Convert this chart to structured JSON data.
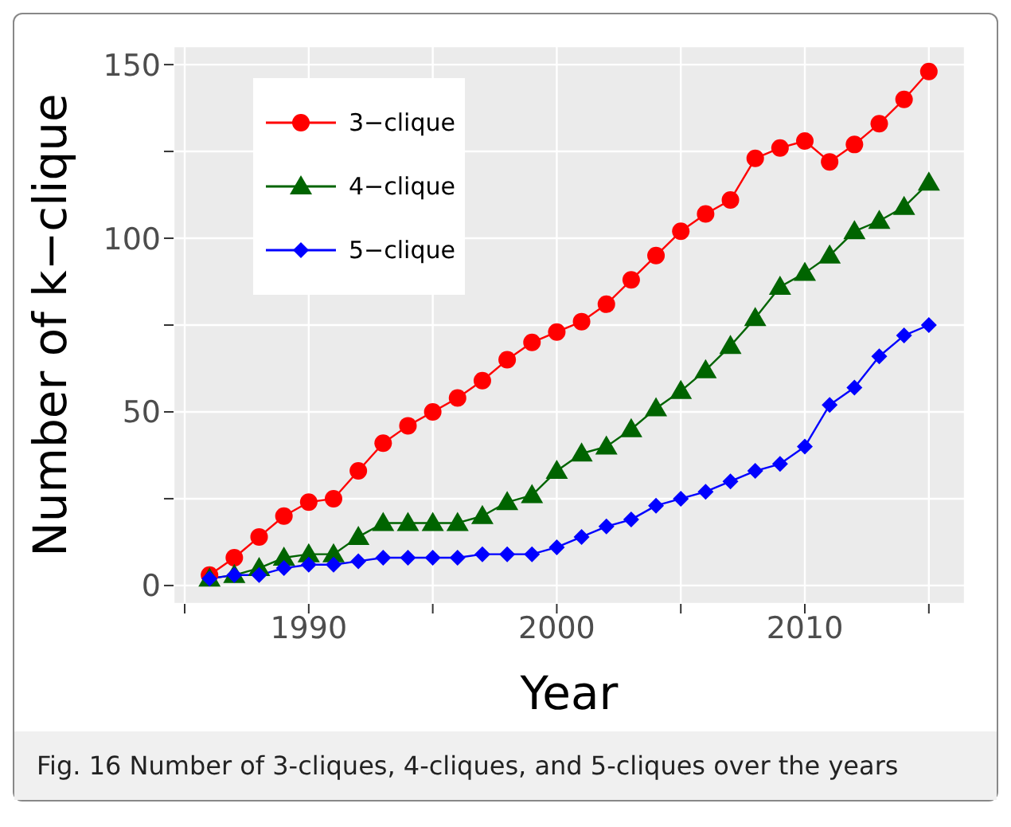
{
  "chart_data": {
    "type": "line",
    "xlabel": "Year",
    "ylabel": "Number of k−clique",
    "x": [
      1986,
      1987,
      1988,
      1989,
      1990,
      1991,
      1992,
      1993,
      1994,
      1995,
      1996,
      1997,
      1998,
      1999,
      2000,
      2001,
      2002,
      2003,
      2004,
      2005,
      2006,
      2007,
      2008,
      2009,
      2010,
      2011,
      2012,
      2013,
      2014,
      2015
    ],
    "series": [
      {
        "name": "3−clique",
        "color": "#ff0000",
        "marker": "circle",
        "values": [
          3,
          8,
          14,
          20,
          24,
          25,
          33,
          41,
          46,
          50,
          54,
          59,
          65,
          70,
          73,
          76,
          81,
          88,
          95,
          102,
          107,
          111,
          123,
          126,
          128,
          122,
          127,
          133,
          140,
          148
        ]
      },
      {
        "name": "4−clique",
        "color": "#006400",
        "marker": "triangle",
        "values": [
          2,
          3,
          5,
          8,
          9,
          9,
          14,
          18,
          18,
          18,
          18,
          20,
          24,
          26,
          33,
          38,
          40,
          45,
          51,
          56,
          62,
          69,
          77,
          86,
          90,
          95,
          102,
          105,
          109,
          116
        ]
      },
      {
        "name": "5−clique",
        "color": "#0000ff",
        "marker": "diamond",
        "values": [
          2,
          3,
          3,
          5,
          6,
          6,
          7,
          8,
          8,
          8,
          8,
          9,
          9,
          9,
          11,
          14,
          17,
          19,
          23,
          25,
          27,
          30,
          33,
          35,
          40,
          52,
          57,
          66,
          72,
          75
        ]
      }
    ],
    "xlim": [
      1984.55,
      2016.45
    ],
    "xticks": [
      {
        "value": 1985,
        "label": null
      },
      1990,
      {
        "value": 1995,
        "label": null
      },
      2000,
      {
        "value": 2005,
        "label": null
      },
      2010,
      {
        "value": 2015,
        "label": null
      }
    ],
    "ylim": [
      -5.3,
      155.3
    ],
    "yticks": [
      0,
      {
        "value": 25,
        "label": null
      },
      50,
      {
        "value": 75,
        "label": null
      },
      100,
      {
        "value": 125,
        "label": null
      },
      150
    ],
    "grid": true,
    "legend": "top left",
    "annotations": [
      "Fig. 16 Number of 3-cliques, 4-cliques, and 5-cliques over the years"
    ]
  }
}
